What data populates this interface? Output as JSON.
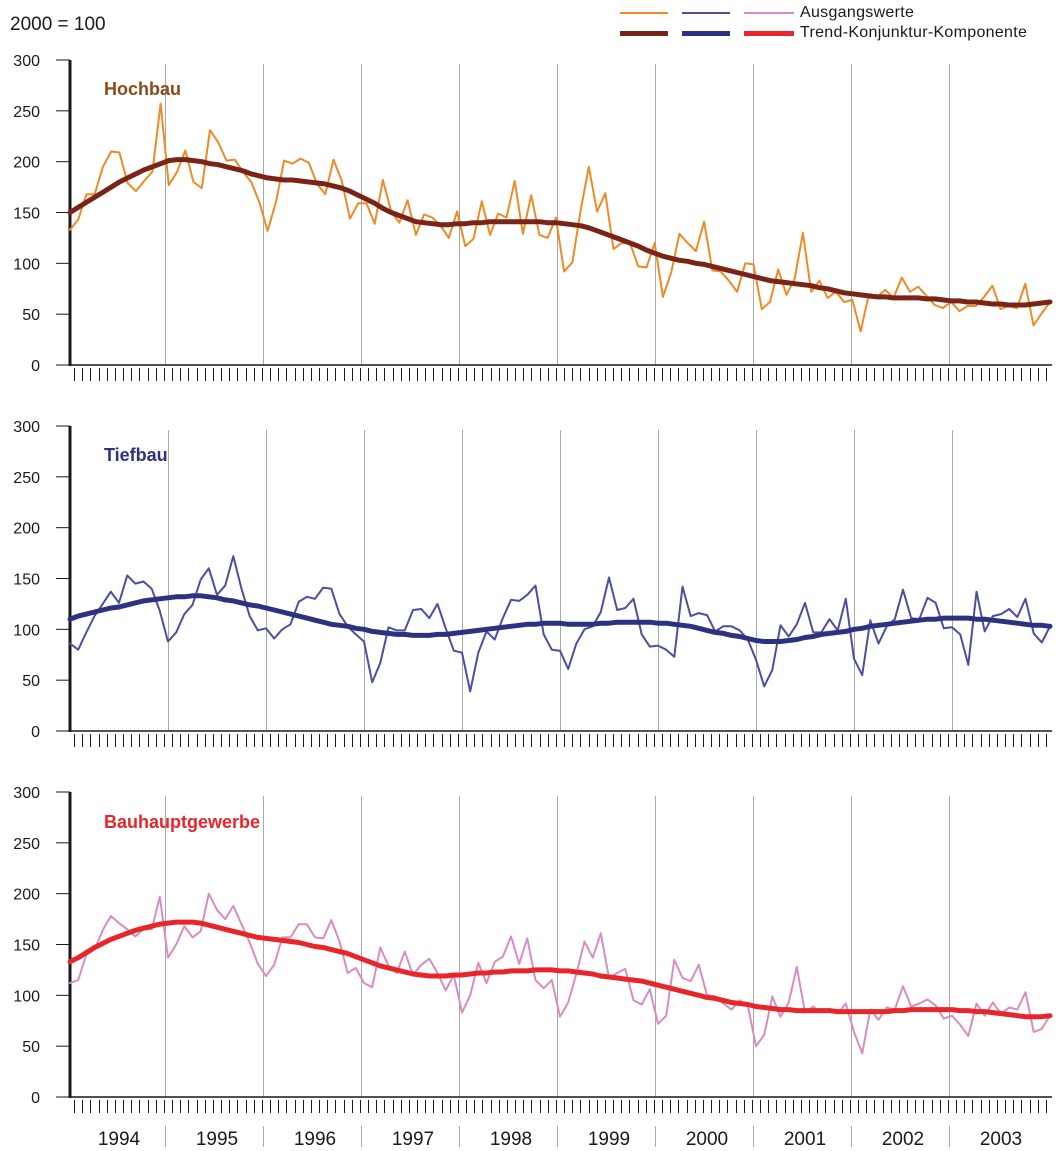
{
  "unit_label": "2000 = 100",
  "legend": {
    "raw_label": "Ausgangswerte",
    "trend_label": "Trend-Konjunktur-Komponente"
  },
  "colors": {
    "hochbau_raw": "#f08a24",
    "hochbau_trend": "#7a2418",
    "hochbau_title": "#8b4a1c",
    "tiefbau_raw": "#4a4f9e",
    "tiefbau_trend": "#2c3280",
    "tiefbau_title": "#2c3280",
    "bau_raw": "#d98cc3",
    "bau_trend": "#e8262a",
    "bau_title": "#e8262a",
    "grid": "#a8a8a8",
    "axis": "#1a1a1a"
  },
  "chart_data": [
    {
      "type": "line",
      "title": "Hochbau",
      "ylim": [
        0,
        300
      ],
      "yticks": [
        0,
        50,
        100,
        150,
        200,
        250,
        300
      ],
      "grid": "vertical yearly lines",
      "series": [
        {
          "name": "Ausgangswerte",
          "values": [
            133,
            143,
            168,
            168,
            195,
            210,
            209,
            179,
            171,
            181,
            190,
            257,
            177,
            190,
            211,
            180,
            174,
            231,
            219,
            201,
            202,
            190,
            180,
            160,
            132,
            160,
            201,
            198,
            203,
            199,
            178,
            168,
            202,
            181,
            144,
            159,
            159,
            139,
            182,
            151,
            140,
            162,
            128,
            148,
            145,
            137,
            125,
            151,
            117,
            124,
            161,
            128,
            149,
            145,
            181,
            129,
            167,
            128,
            125,
            145,
            92,
            101,
            152,
            195,
            151,
            169,
            114,
            120,
            120,
            97,
            96,
            120,
            67,
            91,
            129,
            120,
            112,
            141,
            93,
            92,
            83,
            72,
            100,
            99,
            55,
            62,
            94,
            69,
            85,
            130,
            72,
            83,
            66,
            72,
            62,
            64,
            33,
            69,
            67,
            74,
            66,
            86,
            72,
            77,
            68,
            59,
            56,
            62,
            53,
            58,
            58,
            67,
            78,
            55,
            58,
            56,
            80,
            39,
            51,
            62
          ]
        },
        {
          "name": "Trend-Konjunktur-Komponente",
          "values": [
            150,
            155,
            160,
            165,
            170,
            175,
            180,
            184,
            188,
            192,
            195,
            198,
            201,
            202,
            202,
            201,
            200,
            198,
            197,
            195,
            193,
            191,
            188,
            186,
            184,
            183,
            182,
            182,
            181,
            180,
            179,
            178,
            176,
            174,
            171,
            167,
            163,
            159,
            154,
            150,
            147,
            144,
            141,
            140,
            139,
            138,
            138,
            139,
            139,
            140,
            140,
            141,
            141,
            141,
            141,
            141,
            141,
            141,
            140,
            140,
            139,
            138,
            137,
            135,
            132,
            129,
            126,
            123,
            120,
            117,
            113,
            110,
            107,
            105,
            103,
            102,
            100,
            99,
            97,
            95,
            93,
            91,
            89,
            87,
            85,
            83,
            82,
            81,
            80,
            79,
            78,
            76,
            75,
            73,
            71,
            70,
            69,
            68,
            67,
            67,
            66,
            66,
            66,
            66,
            65,
            65,
            64,
            63,
            63,
            62,
            62,
            61,
            60,
            60,
            59,
            59,
            59,
            60,
            61,
            62
          ]
        }
      ]
    },
    {
      "type": "line",
      "title": "Tiefbau",
      "ylim": [
        0,
        300
      ],
      "yticks": [
        0,
        50,
        100,
        150,
        200,
        250,
        300
      ],
      "grid": "vertical yearly lines",
      "series": [
        {
          "name": "Ausgangswerte",
          "values": [
            86,
            80,
            97,
            113,
            125,
            137,
            126,
            153,
            145,
            147,
            140,
            118,
            88,
            97,
            115,
            124,
            149,
            160,
            134,
            143,
            172,
            140,
            113,
            99,
            101,
            91,
            100,
            105,
            127,
            132,
            130,
            141,
            140,
            115,
            103,
            95,
            88,
            48,
            67,
            102,
            99,
            99,
            119,
            120,
            111,
            125,
            101,
            79,
            77,
            39,
            77,
            98,
            90,
            111,
            129,
            128,
            134,
            143,
            95,
            80,
            79,
            61,
            86,
            100,
            103,
            117,
            151,
            119,
            121,
            130,
            95,
            83,
            84,
            80,
            73,
            142,
            113,
            116,
            114,
            98,
            103,
            103,
            99,
            90,
            70,
            44,
            60,
            104,
            93,
            105,
            126,
            97,
            97,
            110,
            99,
            130,
            71,
            55,
            109,
            86,
            103,
            110,
            139,
            111,
            110,
            131,
            126,
            101,
            102,
            95,
            65,
            137,
            98,
            113,
            115,
            120,
            112,
            130,
            96,
            87,
            103
          ]
        },
        {
          "name": "Trend-Konjunktur-Komponente",
          "values": [
            110,
            113,
            115,
            117,
            119,
            121,
            122,
            124,
            126,
            128,
            129,
            130,
            131,
            132,
            132,
            133,
            133,
            132,
            131,
            129,
            128,
            126,
            124,
            123,
            121,
            119,
            117,
            115,
            113,
            111,
            109,
            107,
            105,
            104,
            103,
            101,
            100,
            98,
            97,
            96,
            95,
            95,
            94,
            94,
            94,
            95,
            95,
            96,
            97,
            98,
            99,
            100,
            101,
            102,
            103,
            104,
            105,
            105,
            106,
            106,
            106,
            105,
            105,
            105,
            105,
            106,
            106,
            107,
            107,
            107,
            107,
            107,
            106,
            106,
            105,
            104,
            103,
            101,
            99,
            97,
            96,
            94,
            93,
            91,
            89,
            88,
            88,
            88,
            89,
            90,
            92,
            93,
            95,
            96,
            97,
            98,
            100,
            101,
            103,
            104,
            105,
            106,
            107,
            108,
            109,
            110,
            110,
            111,
            111,
            111,
            111,
            110,
            110,
            109,
            108,
            107,
            106,
            105,
            104,
            104,
            103
          ]
        }
      ]
    },
    {
      "type": "line",
      "title": "Bauhauptgewerbe",
      "ylim": [
        0,
        300
      ],
      "yticks": [
        0,
        50,
        100,
        150,
        200,
        250,
        300
      ],
      "grid": "vertical yearly lines",
      "series": [
        {
          "name": "Ausgangswerte",
          "values": [
            112,
            115,
            140,
            145,
            164,
            178,
            171,
            165,
            158,
            165,
            165,
            197,
            137,
            150,
            168,
            157,
            163,
            200,
            184,
            175,
            188,
            170,
            152,
            131,
            119,
            130,
            157,
            157,
            170,
            170,
            157,
            156,
            174,
            153,
            122,
            127,
            112,
            108,
            147,
            129,
            122,
            143,
            120,
            130,
            136,
            122,
            105,
            120,
            83,
            100,
            132,
            112,
            133,
            138,
            158,
            131,
            156,
            115,
            107,
            115,
            79,
            93,
            121,
            153,
            137,
            161,
            117,
            122,
            126,
            95,
            91,
            106,
            72,
            80,
            135,
            117,
            114,
            130,
            100,
            99,
            92,
            86,
            95,
            90,
            50,
            61,
            99,
            79,
            93,
            128,
            83,
            89,
            83,
            87,
            82,
            92,
            64,
            43,
            86,
            76,
            88,
            86,
            109,
            89,
            92,
            96,
            90,
            77,
            80,
            71,
            60,
            92,
            80,
            93,
            82,
            88,
            86,
            103,
            64,
            67,
            80
          ]
        },
        {
          "name": "Trend-Konjunktur-Komponente",
          "values": [
            133,
            137,
            142,
            147,
            151,
            155,
            158,
            161,
            164,
            166,
            168,
            170,
            171,
            172,
            172,
            172,
            171,
            169,
            167,
            165,
            163,
            161,
            159,
            157,
            156,
            155,
            154,
            153,
            152,
            150,
            148,
            147,
            145,
            143,
            141,
            138,
            135,
            132,
            129,
            127,
            125,
            123,
            121,
            120,
            119,
            119,
            119,
            120,
            120,
            121,
            122,
            122,
            123,
            123,
            124,
            124,
            124,
            125,
            125,
            125,
            124,
            124,
            123,
            122,
            121,
            119,
            118,
            117,
            116,
            115,
            114,
            112,
            110,
            108,
            106,
            104,
            102,
            100,
            98,
            97,
            95,
            93,
            92,
            91,
            89,
            88,
            87,
            86,
            86,
            85,
            85,
            85,
            85,
            85,
            84,
            84,
            84,
            84,
            84,
            84,
            84,
            85,
            85,
            86,
            86,
            86,
            86,
            86,
            86,
            85,
            85,
            84,
            84,
            83,
            82,
            81,
            80,
            79,
            79,
            79,
            80
          ]
        }
      ]
    }
  ],
  "x_axis": {
    "years": [
      "1994",
      "1995",
      "1996",
      "1997",
      "1998",
      "1999",
      "2000",
      "2001",
      "2002",
      "2003"
    ],
    "minor_ticks_per_year": 12
  }
}
